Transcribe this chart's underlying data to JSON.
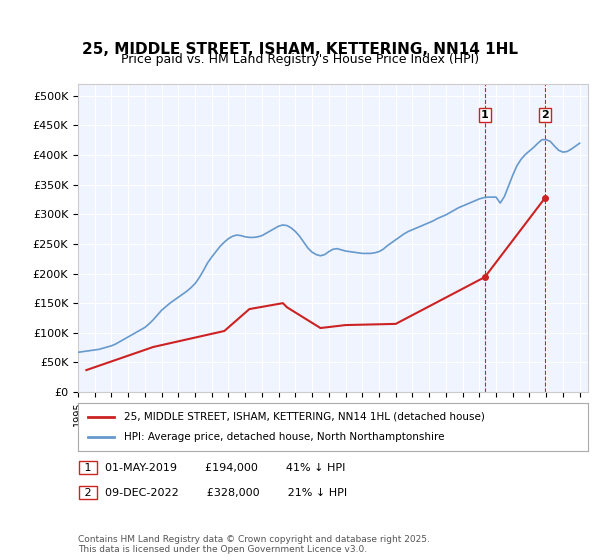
{
  "title": "25, MIDDLE STREET, ISHAM, KETTERING, NN14 1HL",
  "subtitle": "Price paid vs. HM Land Registry's House Price Index (HPI)",
  "ylabel_prefix": "£",
  "ylim": [
    0,
    520000
  ],
  "yticks": [
    0,
    50000,
    100000,
    150000,
    200000,
    250000,
    300000,
    350000,
    400000,
    450000,
    500000
  ],
  "ytick_labels": [
    "£0",
    "£50K",
    "£100K",
    "£150K",
    "£200K",
    "£250K",
    "£300K",
    "£350K",
    "£400K",
    "£450K",
    "£500K"
  ],
  "xlim_start": 1995.0,
  "xlim_end": 2025.5,
  "background_color": "#ffffff",
  "plot_bg_color": "#f0f4ff",
  "grid_color": "#ffffff",
  "hpi_color": "#6699cc",
  "price_color": "#cc2222",
  "transaction1_date": 2019.33,
  "transaction1_price": 194000,
  "transaction1_label": "1",
  "transaction2_date": 2022.94,
  "transaction2_price": 328000,
  "transaction2_label": "2",
  "legend_line1": "25, MIDDLE STREET, ISHAM, KETTERING, NN14 1HL (detached house)",
  "legend_line2": "HPI: Average price, detached house, North Northamptonshire",
  "annotation1": "01-MAY-2019        £194,000        41% ↓ HPI",
  "annotation2": "09-DEC-2022        £328,000        21% ↓ HPI",
  "footer": "Contains HM Land Registry data © Crown copyright and database right 2025.\nThis data is licensed under the Open Government Licence v3.0.",
  "hpi_data_x": [
    1995.0,
    1995.25,
    1995.5,
    1995.75,
    1996.0,
    1996.25,
    1996.5,
    1996.75,
    1997.0,
    1997.25,
    1997.5,
    1997.75,
    1998.0,
    1998.25,
    1998.5,
    1998.75,
    1999.0,
    1999.25,
    1999.5,
    1999.75,
    2000.0,
    2000.25,
    2000.5,
    2000.75,
    2001.0,
    2001.25,
    2001.5,
    2001.75,
    2002.0,
    2002.25,
    2002.5,
    2002.75,
    2003.0,
    2003.25,
    2003.5,
    2003.75,
    2004.0,
    2004.25,
    2004.5,
    2004.75,
    2005.0,
    2005.25,
    2005.5,
    2005.75,
    2006.0,
    2006.25,
    2006.5,
    2006.75,
    2007.0,
    2007.25,
    2007.5,
    2007.75,
    2008.0,
    2008.25,
    2008.5,
    2008.75,
    2009.0,
    2009.25,
    2009.5,
    2009.75,
    2010.0,
    2010.25,
    2010.5,
    2010.75,
    2011.0,
    2011.25,
    2011.5,
    2011.75,
    2012.0,
    2012.25,
    2012.5,
    2012.75,
    2013.0,
    2013.25,
    2013.5,
    2013.75,
    2014.0,
    2014.25,
    2014.5,
    2014.75,
    2015.0,
    2015.25,
    2015.5,
    2015.75,
    2016.0,
    2016.25,
    2016.5,
    2016.75,
    2017.0,
    2017.25,
    2017.5,
    2017.75,
    2018.0,
    2018.25,
    2018.5,
    2018.75,
    2019.0,
    2019.25,
    2019.5,
    2019.75,
    2020.0,
    2020.25,
    2020.5,
    2020.75,
    2021.0,
    2021.25,
    2021.5,
    2021.75,
    2022.0,
    2022.25,
    2022.5,
    2022.75,
    2023.0,
    2023.25,
    2023.5,
    2023.75,
    2024.0,
    2024.25,
    2024.5,
    2024.75,
    2025.0
  ],
  "hpi_data_y": [
    67000,
    68000,
    69000,
    70000,
    71000,
    72000,
    74000,
    76000,
    78000,
    81000,
    85000,
    89000,
    93000,
    97000,
    101000,
    105000,
    109000,
    115000,
    122000,
    130000,
    138000,
    144000,
    150000,
    155000,
    160000,
    165000,
    170000,
    176000,
    183000,
    193000,
    205000,
    218000,
    228000,
    237000,
    246000,
    253000,
    259000,
    263000,
    265000,
    264000,
    262000,
    261000,
    261000,
    262000,
    264000,
    268000,
    272000,
    276000,
    280000,
    282000,
    281000,
    277000,
    271000,
    263000,
    253000,
    243000,
    236000,
    232000,
    230000,
    232000,
    237000,
    241000,
    242000,
    240000,
    238000,
    237000,
    236000,
    235000,
    234000,
    234000,
    234000,
    235000,
    237000,
    241000,
    247000,
    252000,
    257000,
    262000,
    267000,
    271000,
    274000,
    277000,
    280000,
    283000,
    286000,
    289000,
    293000,
    296000,
    299000,
    303000,
    307000,
    311000,
    314000,
    317000,
    320000,
    323000,
    326000,
    328000,
    329000,
    329000,
    329000,
    319000,
    330000,
    348000,
    366000,
    382000,
    393000,
    401000,
    407000,
    413000,
    420000,
    426000,
    426000,
    423000,
    415000,
    408000,
    405000,
    406000,
    410000,
    415000,
    420000
  ],
  "price_data_x": [
    1995.5,
    1999.5,
    2003.75,
    2005.25,
    2007.25,
    2007.5,
    2009.5,
    2011.0,
    2014.0,
    2019.33,
    2022.94
  ],
  "price_data_y": [
    37000,
    76000,
    103000,
    140000,
    150000,
    143000,
    108000,
    113000,
    115000,
    194000,
    328000
  ]
}
